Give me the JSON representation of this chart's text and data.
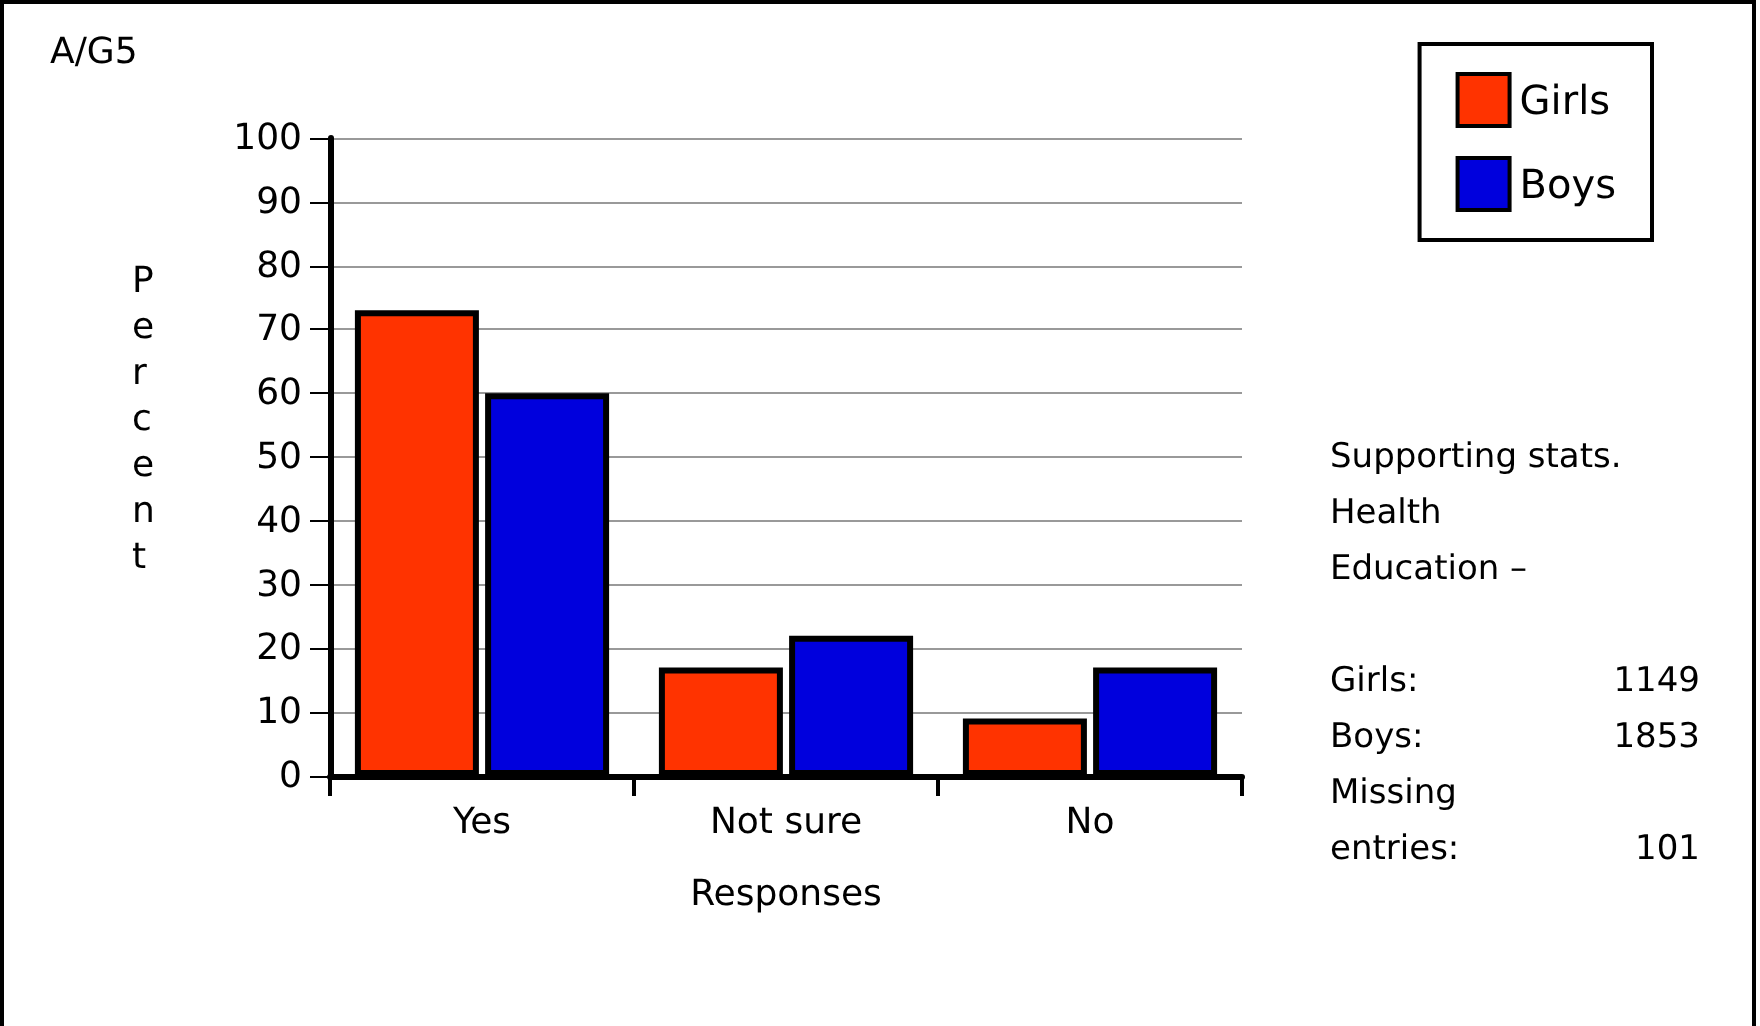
{
  "chart_data": {
    "type": "bar",
    "title": "A/G5",
    "xlabel": "Responses",
    "ylabel": "Percent",
    "categories": [
      "Yes",
      "Not sure",
      "No"
    ],
    "series": [
      {
        "name": "Girls",
        "color": "#ff3300",
        "values": [
          73,
          17,
          9
        ]
      },
      {
        "name": "Boys",
        "color": "#0000dd",
        "values": [
          60,
          22,
          17
        ]
      }
    ],
    "ylim": [
      0,
      100
    ],
    "yticks": [
      0,
      10,
      20,
      30,
      40,
      50,
      60,
      70,
      80,
      90,
      100
    ],
    "grid": "y",
    "legend": "top right",
    "annotations": [
      "Supporting stats.\nHealth\nEducation –\n",
      "Girls:\t1149",
      "Boys:\t1853",
      "Missing\nentries:\t101"
    ]
  }
}
